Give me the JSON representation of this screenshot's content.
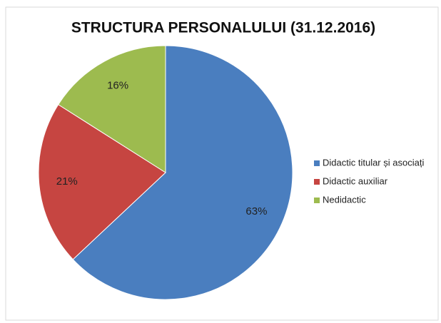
{
  "chart_data": {
    "type": "pie",
    "title": "STRUCTURA PERSONALULUI  (31.12.2016)",
    "categories": [
      "Didactic titular și asociați",
      "Didactic auxiliar",
      "Nedidactic"
    ],
    "values": [
      63,
      21,
      16
    ],
    "value_labels": [
      "63%",
      "21%",
      "16%"
    ],
    "colors": [
      "#4a7ebf",
      "#c64541",
      "#9dbb4f"
    ],
    "legend": "right"
  }
}
